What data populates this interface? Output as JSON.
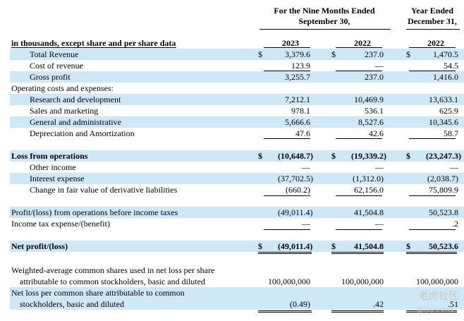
{
  "header": {
    "nine_months_line1": "For the Nine Months Ended",
    "nine_months_line2": "September 30,",
    "year_line1": "Year Ended",
    "year_line2": "December 31,",
    "unit_note": "in thousands, except share and per share data",
    "years": [
      "2023",
      "2022",
      "2022"
    ]
  },
  "rows": {
    "total_revenue": {
      "label": "Total Revenue",
      "v": [
        "3,379.6",
        "237.0",
        "1,470.5"
      ]
    },
    "cost_of_revenue": {
      "label": "Cost of revenue",
      "v": [
        "123.9",
        "—",
        "54.5"
      ]
    },
    "gross_profit": {
      "label": "Gross profit",
      "v": [
        "3,255.7",
        "237.0",
        "1,416.0"
      ]
    },
    "opex": {
      "label": "Operating costs and expenses:"
    },
    "rnd": {
      "label": "Research and development",
      "v": [
        "7,212.1",
        "10,469.9",
        "13,633.1"
      ]
    },
    "sales": {
      "label": "Sales and marketing",
      "v": [
        "978.1",
        "536.1",
        "625.9"
      ]
    },
    "gna": {
      "label": "General and administrative",
      "v": [
        "5,666.6",
        "8,527.6",
        "10,345.6"
      ]
    },
    "dna": {
      "label": "Depreciation and Amortization",
      "v": [
        "47.6",
        "42.6",
        "58.7"
      ]
    },
    "loss_ops": {
      "label": "Loss from operations",
      "v": [
        "(10,648.7)",
        "(19,339.2)",
        "(23,247.3)"
      ]
    },
    "other_income": {
      "label": "Other income",
      "v": [
        "—",
        "—",
        "—"
      ]
    },
    "interest": {
      "label": "Interest expense",
      "v": [
        "(37,702.5)",
        "(1,312.0)",
        "(2,038.7)"
      ]
    },
    "fair_value": {
      "label": "Change in fair value of derivative liabilities",
      "v": [
        "(660.2)",
        "62,156.0",
        "75,809.9"
      ]
    },
    "profit_before_tax": {
      "label": "Profit/(loss) from operations before income taxes",
      "v": [
        "(49,011.4)",
        "41,504.8",
        "50,523.8"
      ]
    },
    "tax": {
      "label": "Income tax expense/(benefit)",
      "v": [
        "—",
        "—",
        ".2"
      ]
    },
    "net_profit": {
      "label": "Net profit/(loss)",
      "v": [
        "(49,011.4)",
        "41,504.8",
        "50,523.6"
      ]
    },
    "shares_l1": {
      "label": "Weighted-average common shares used in net loss per share"
    },
    "shares_l2": {
      "label": "attributable to common stockholders, basic and diluted",
      "v": [
        "100,000,000",
        "100,000,000",
        "100,000,000"
      ]
    },
    "eps_l1": {
      "label": "Net loss per common share attributable to common"
    },
    "eps_l2": {
      "label": "stockholders, basic and diluted",
      "v": [
        "(0.49)",
        ".42",
        ".51"
      ]
    }
  },
  "dollar_sign": "$",
  "watermark": "老虎社区",
  "watermark_sub": "@Tigerstalk"
}
